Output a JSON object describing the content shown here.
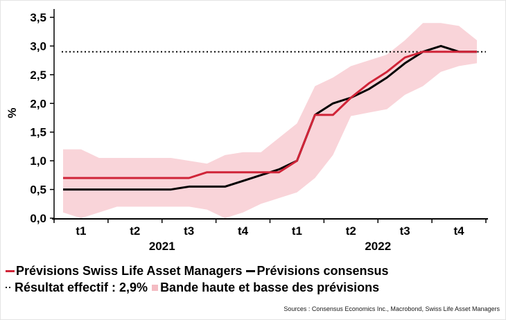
{
  "colors": {
    "slam_red": "#d02438",
    "consensus_black": "#000000",
    "band_pink": "#f9d4d9",
    "band_swatch": "#f4bcc3",
    "axis_black": "#000000"
  },
  "chart_data": {
    "type": "line",
    "title": "",
    "xlabel": "",
    "ylabel": "%",
    "ylim": [
      0,
      3.5
    ],
    "y_tick_labels": [
      "0,0",
      "0,5",
      "1,0",
      "1,5",
      "2,0",
      "2,5",
      "3,0",
      "3,5"
    ],
    "grid": false,
    "legend_position": "bottom",
    "quarters": [
      "t1",
      "t2",
      "t3",
      "t4",
      "t1",
      "t2",
      "t3",
      "t4"
    ],
    "years": [
      "2021",
      "2022"
    ],
    "months_per_quarter": 3,
    "reference_line": {
      "label": "Résultat effectif",
      "value": 2.9,
      "display": "2,9%"
    },
    "series": [
      {
        "name": "Prévisions Swiss Life Asset Managers",
        "color": "#d02438",
        "values": [
          0.7,
          0.7,
          0.7,
          0.7,
          0.7,
          0.7,
          0.7,
          0.7,
          0.8,
          0.8,
          0.8,
          0.8,
          0.8,
          1.0,
          1.8,
          1.8,
          2.1,
          2.35,
          2.55,
          2.8,
          2.9,
          2.9,
          2.9,
          2.9
        ]
      },
      {
        "name": "Prévisions consensus",
        "color": "#000000",
        "values": [
          0.5,
          0.5,
          0.5,
          0.5,
          0.5,
          0.5,
          0.5,
          0.55,
          0.55,
          0.55,
          0.65,
          0.75,
          0.85,
          1.0,
          1.8,
          2.0,
          2.1,
          2.25,
          2.45,
          2.7,
          2.9,
          3.0,
          2.9,
          2.9
        ]
      }
    ],
    "band": {
      "name": "Bande haute et basse des prévisions",
      "color": "#f9d4d9",
      "top": [
        1.2,
        1.2,
        1.05,
        1.05,
        1.05,
        1.05,
        1.05,
        1.0,
        0.95,
        1.1,
        1.15,
        1.15,
        1.4,
        1.65,
        2.3,
        2.45,
        2.65,
        2.75,
        2.85,
        3.1,
        3.4,
        3.4,
        3.35,
        3.1
      ],
      "bottom": [
        0.1,
        0.0,
        0.1,
        0.2,
        0.2,
        0.2,
        0.2,
        0.2,
        0.15,
        0.0,
        0.1,
        0.25,
        0.35,
        0.45,
        0.7,
        1.1,
        1.78,
        1.84,
        1.9,
        2.15,
        2.3,
        2.55,
        2.65,
        2.7
      ]
    }
  },
  "legend": {
    "row1": [
      {
        "label": "Prévisions Swiss Life Asset Managers"
      },
      {
        "label": "Prévisions consensus"
      }
    ],
    "row2": [
      {
        "label": "Résultat effectif : 2,9%"
      },
      {
        "label": "Bande haute et basse des prévisions"
      }
    ]
  },
  "source": "Sources : Consensus Economics Inc., Macrobond, Swiss Life Asset Managers"
}
